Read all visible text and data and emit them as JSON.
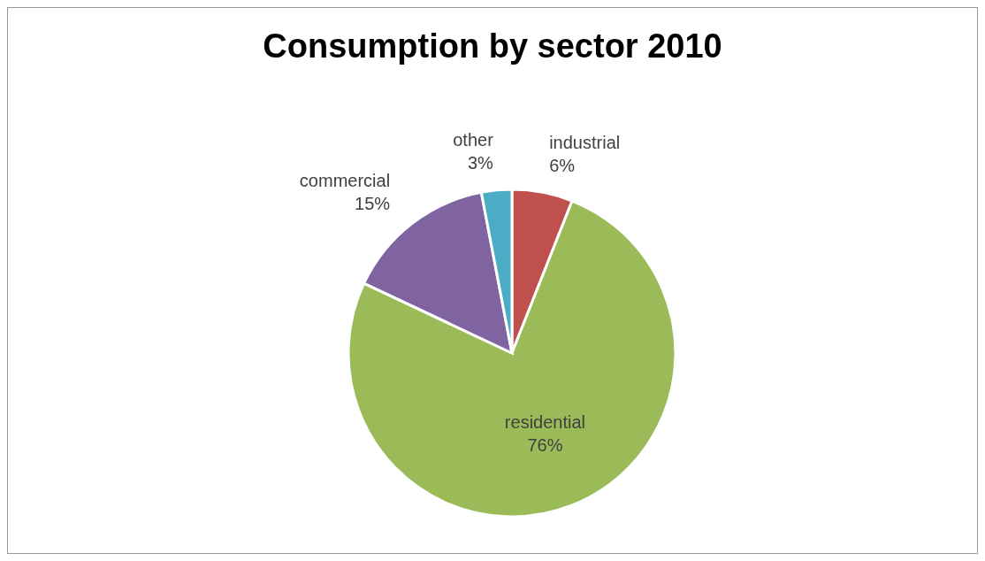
{
  "chart_data": {
    "type": "pie",
    "title": "Consumption by sector 2010",
    "categories": [
      "industrial",
      "residential",
      "commercial",
      "other"
    ],
    "values": [
      6,
      76,
      15,
      3
    ],
    "colors": [
      "#c0504d",
      "#9bbb59",
      "#8064a2",
      "#4bacc6"
    ],
    "value_labels": [
      "6%",
      "76%",
      "15%",
      "3%"
    ]
  }
}
